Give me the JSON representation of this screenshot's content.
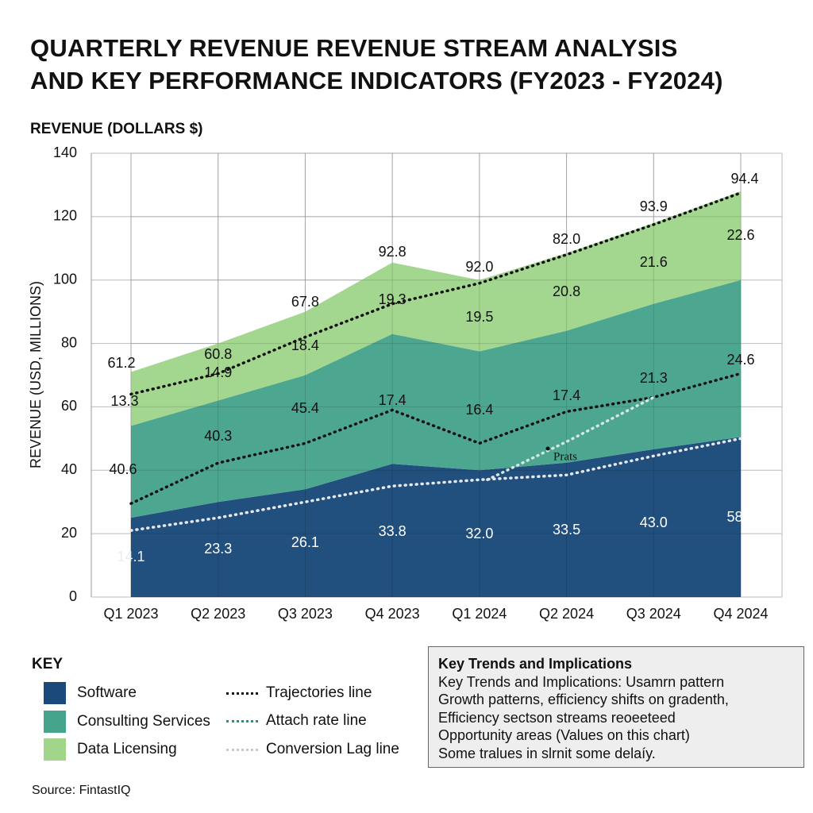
{
  "title_line1": "QUARTERLY REVENUE REVENUE STREAM ANALYSIS",
  "title_line2": "AND KEY PERFORMANCE INDICATORS (FY2023 - FY2024)",
  "top_axis_label": "REVENUE (DOLLARS $)",
  "chart_data": {
    "type": "area",
    "stacked": true,
    "ylabel": "REVENUE (USD, MILLIONS)",
    "ylim": [
      0,
      140
    ],
    "yticks": [
      0,
      20,
      40,
      60,
      80,
      100,
      120,
      140
    ],
    "grid": true,
    "categories": [
      "Q1 2023",
      "Q2 2023",
      "Q3 2023",
      "Q4 2023",
      "Q1 2024",
      "Q2 2024",
      "Q3 2024",
      "Q4 2024"
    ],
    "series": [
      {
        "name": "Software",
        "color": "#1b4a7a",
        "cumulative_top": [
          25,
          30,
          34,
          42,
          40,
          42.4,
          46.6,
          50.5
        ],
        "labels": [
          "14.1",
          "23.3",
          "26.1",
          "33.8",
          "32.0",
          "33.5",
          "43.0",
          "58.0"
        ]
      },
      {
        "name": "Consulting Services",
        "color": "#47a48c",
        "cumulative_top": [
          54,
          62,
          70,
          83,
          77.5,
          84,
          92.5,
          100
        ],
        "labels": [
          "40.6",
          "40.3",
          "45.4",
          "17.4",
          "16.4",
          "17.4",
          "21.3",
          "24.6"
        ]
      },
      {
        "name": "Data Licensing",
        "color": "#a0d58a",
        "cumulative_top": [
          71,
          80,
          90,
          105.5,
          100,
          108.5,
          118,
          128
        ],
        "labels": [
          "13.3",
          "14.9",
          "18.4",
          "19.3",
          "19.5",
          "20.8",
          "21.6",
          "22.6"
        ]
      }
    ],
    "total_labels": [
      "61.2",
      "60.8",
      "67.8",
      "92.8",
      "92.0",
      "82.0",
      "93.9",
      "94.4"
    ],
    "lines": [
      {
        "name": "Trajectories line",
        "color": "#111111",
        "values": [
          64,
          70.5,
          82,
          92.5,
          99,
          108,
          117.5,
          127.5
        ]
      },
      {
        "name": "Trajectories line",
        "color": "#111111",
        "values": [
          29.5,
          42.3,
          48.5,
          59,
          48.5,
          58.5,
          63,
          70.5
        ]
      },
      {
        "name": "Attach rate line",
        "color": "#d6e8df",
        "values": [
          null,
          null,
          null,
          null,
          37,
          49,
          63,
          null
        ]
      },
      {
        "name": "Conversion Lag line",
        "color": "#e8e8ee",
        "values": [
          21,
          25,
          30,
          35,
          37,
          38.5,
          44.5,
          50
        ]
      }
    ],
    "annotation": "Prats"
  },
  "key": {
    "title": "KEY",
    "areas": [
      {
        "label": "Software",
        "color": "#1b4a7a"
      },
      {
        "label": "Consulting Services",
        "color": "#47a48c"
      },
      {
        "label": "Data Licensing",
        "color": "#a0d58a"
      }
    ],
    "lines": [
      {
        "label": "Trajectories line",
        "color": "#111111"
      },
      {
        "label": "Attach rate line",
        "color": "#2e8f7a"
      },
      {
        "label": "Conversion Lag line",
        "color": "#c8c8d0"
      }
    ]
  },
  "trends": {
    "title": "Key Trends and Implications",
    "lines": [
      "Key Trends and Implications: Usamrn pattern",
      "Growth patterns, efficiency shifts on gradenth,",
      "Efficiency sectson streams reoeeteed",
      "Opportunity areas (Values on this chart)",
      "Some tralues in slrnit some delaíy."
    ]
  },
  "source": "Source: FintastIQ"
}
